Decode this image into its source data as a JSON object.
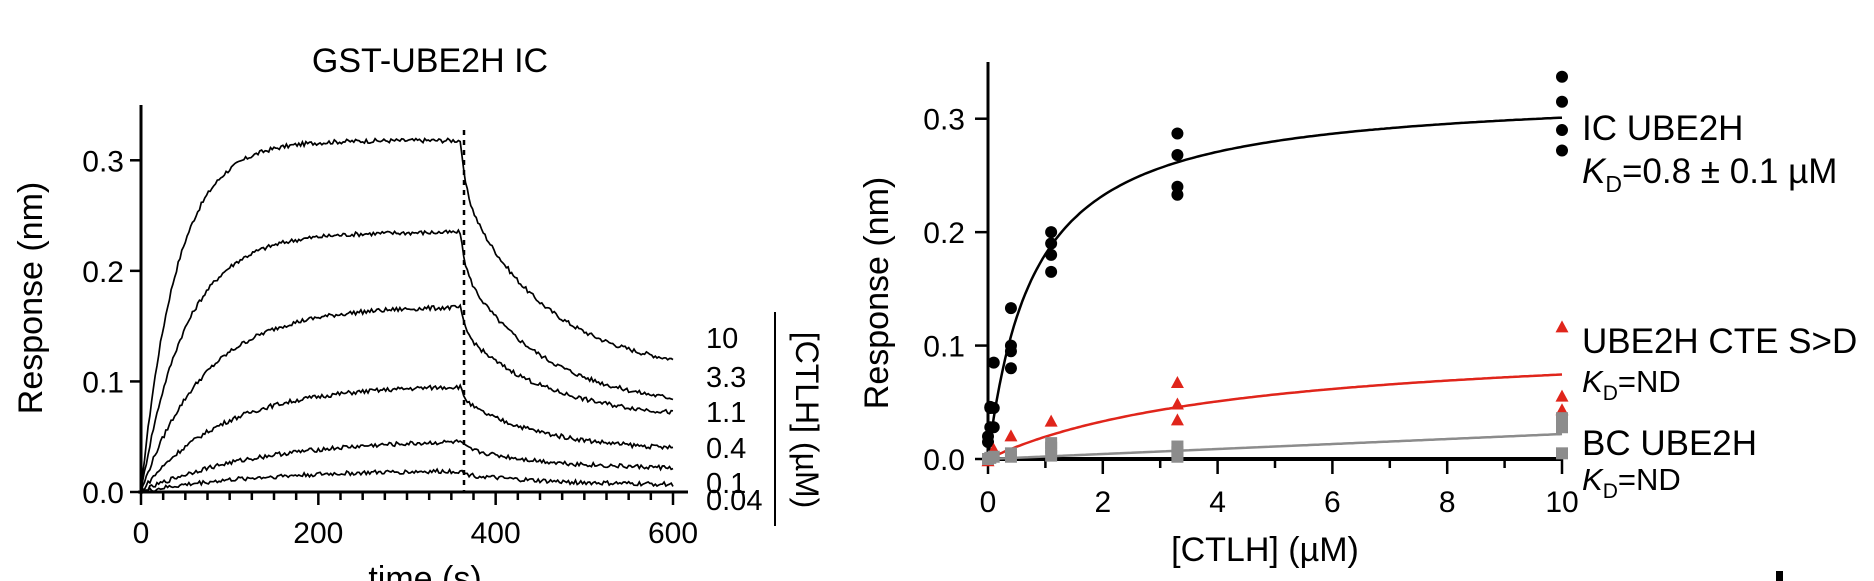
{
  "chart_data": [
    {
      "type": "line",
      "title": "GST-UBE2H IC",
      "xlabel": "time (s)",
      "ylabel": "Response  (nm)",
      "xlim": [
        0,
        610
      ],
      "ylim": [
        0,
        0.35
      ],
      "x_ticks": [
        "0",
        "200",
        "400",
        "600"
      ],
      "y_ticks": [
        "0.0",
        "0.1",
        "0.2",
        "0.3"
      ],
      "dissociation_start_s": 360,
      "concentration_axis_label": "[CTLH] (µM)",
      "series": [
        {
          "name": "10",
          "plateau": 0.318,
          "k_on": 0.025,
          "end_value": 0.12
        },
        {
          "name": "3.3",
          "plateau": 0.235,
          "k_on": 0.02,
          "end_value": 0.085
        },
        {
          "name": "1.1",
          "plateau": 0.168,
          "k_on": 0.014,
          "end_value": 0.072
        },
        {
          "name": "0.4",
          "plateau": 0.097,
          "k_on": 0.011,
          "end_value": 0.04
        },
        {
          "name": "0.1",
          "plateau": 0.048,
          "k_on": 0.008,
          "end_value": 0.022
        },
        {
          "name": "0.04",
          "plateau": 0.02,
          "k_on": 0.008,
          "end_value": 0.007
        }
      ]
    },
    {
      "type": "scatter",
      "xlabel": "[CTLH] (µM)",
      "ylabel": "Response  (nm)",
      "xlim": [
        0,
        10
      ],
      "ylim": [
        0,
        0.35
      ],
      "x_ticks": [
        "0",
        "2",
        "4",
        "6",
        "8",
        "10"
      ],
      "y_ticks": [
        "0.0",
        "0.1",
        "0.2",
        "0.3"
      ],
      "series": [
        {
          "name": "IC UBE2H",
          "kd_text": "=0.8 ± 0.1 µM",
          "color": "#000000",
          "marker": "circle",
          "fit": {
            "bmax": 0.325,
            "kd": 0.8
          },
          "points": [
            [
              0,
              0.015
            ],
            [
              0,
              0.02
            ],
            [
              0.04,
              0.028
            ],
            [
              0.04,
              0.045
            ],
            [
              0.04,
              0.046
            ],
            [
              0.1,
              0.028
            ],
            [
              0.1,
              0.045
            ],
            [
              0.1,
              0.085
            ],
            [
              0.4,
              0.08
            ],
            [
              0.4,
              0.095
            ],
            [
              0.4,
              0.1
            ],
            [
              0.4,
              0.133
            ],
            [
              1.1,
              0.165
            ],
            [
              1.1,
              0.18
            ],
            [
              1.1,
              0.19
            ],
            [
              1.1,
              0.2
            ],
            [
              3.3,
              0.233
            ],
            [
              3.3,
              0.24
            ],
            [
              3.3,
              0.268
            ],
            [
              3.3,
              0.287
            ],
            [
              10,
              0.272
            ],
            [
              10,
              0.29
            ],
            [
              10,
              0.315
            ],
            [
              10,
              0.337
            ]
          ]
        },
        {
          "name": "UBE2H CTE S>D",
          "kd_text": "=ND",
          "color": "#e0251b",
          "marker": "triangle",
          "fit": {
            "bmax": 0.108,
            "kd": 4.5
          },
          "points": [
            [
              0,
              -0.002
            ],
            [
              0.04,
              0.002
            ],
            [
              0.1,
              0.008
            ],
            [
              0.4,
              0.02
            ],
            [
              1.1,
              0.033
            ],
            [
              3.3,
              0.034
            ],
            [
              3.3,
              0.048
            ],
            [
              3.3,
              0.067
            ],
            [
              10,
              0.043
            ],
            [
              10,
              0.055
            ],
            [
              10,
              0.116
            ]
          ]
        },
        {
          "name": "BC UBE2H",
          "kd_text": "=ND",
          "color": "#8c8c8c",
          "marker": "square",
          "fit": {
            "slope": 0.0022
          },
          "points": [
            [
              0,
              0.0
            ],
            [
              0.04,
              0.001
            ],
            [
              0.1,
              0.002
            ],
            [
              0.4,
              0.002
            ],
            [
              0.4,
              0.005
            ],
            [
              1.1,
              0.003
            ],
            [
              1.1,
              0.01
            ],
            [
              1.1,
              0.014
            ],
            [
              3.3,
              0.002
            ],
            [
              3.3,
              0.006
            ],
            [
              3.3,
              0.011
            ],
            [
              10,
              0.005
            ],
            [
              10,
              0.028
            ],
            [
              10,
              0.036
            ]
          ]
        }
      ]
    }
  ]
}
